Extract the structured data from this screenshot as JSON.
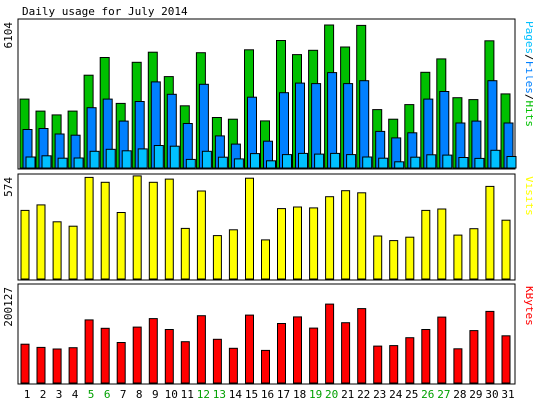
{
  "chart_data": {
    "type": "bar",
    "title": "Daily usage for July 2014",
    "x_ticks": [
      "1",
      "2",
      "3",
      "4",
      "5",
      "6",
      "7",
      "8",
      "9",
      "10",
      "11",
      "12",
      "13",
      "14",
      "15",
      "16",
      "17",
      "18",
      "19",
      "20",
      "21",
      "22",
      "23",
      "24",
      "25",
      "26",
      "27",
      "28",
      "29",
      "30",
      "31"
    ],
    "weekend_days": [
      "5",
      "6",
      "12",
      "13",
      "19",
      "20",
      "26",
      "27"
    ],
    "colors": {
      "hits": "#00c000",
      "files": "#0080ff",
      "pages": "#00c0ff",
      "visits": "#ffff00",
      "kbytes": "#ff0000",
      "weekday_tick": "#000000",
      "weekend_tick": "#00a000"
    },
    "panels": [
      {
        "id": "top",
        "max_label": "6104",
        "ymax": 6104,
        "legend": [
          "Pages",
          "/",
          "Files",
          "/",
          "Hits"
        ],
        "legend_colors": [
          "#00c0ff",
          "#000000",
          "#0080ff",
          "#000000",
          "#00c000"
        ],
        "series": [
          {
            "name": "Hits",
            "color": "#00c000",
            "values": [
              2880,
              2380,
              2220,
              2380,
              3880,
              4620,
              2700,
              4420,
              4840,
              3820,
              2600,
              4820,
              2110,
              2040,
              4940,
              1970,
              5330,
              4740,
              4920,
              5980,
              5060,
              5960,
              2440,
              2040,
              2650,
              4000,
              4560,
              2940,
              2860,
              5320,
              3100
            ]
          },
          {
            "name": "Files",
            "color": "#0080ff",
            "values": [
              1610,
              1650,
              1420,
              1370,
              2520,
              2880,
              1960,
              2780,
              3600,
              3080,
              1860,
              3500,
              1340,
              1000,
              2960,
              1120,
              3150,
              3550,
              3530,
              3990,
              3530,
              3650,
              1530,
              1260,
              1470,
              2880,
              3200,
              1880,
              1960,
              3650,
              1880
            ]
          },
          {
            "name": "Pages",
            "color": "#00c0ff",
            "values": [
              460,
              510,
              410,
              420,
              700,
              780,
              720,
              800,
              940,
              910,
              360,
              700,
              450,
              380,
              600,
              300,
              560,
              610,
              580,
              610,
              560,
              460,
              410,
              260,
              450,
              550,
              540,
              440,
              400,
              740,
              480
            ]
          }
        ]
      },
      {
        "id": "middle",
        "max_label": "574",
        "ymax": 574,
        "legend": [
          "Visits"
        ],
        "legend_colors": [
          "#ffff00"
        ],
        "series": [
          {
            "name": "Visits",
            "color": "#ffff00",
            "values": [
              386,
              417,
              322,
              297,
              572,
              544,
              374,
              580,
              544,
              562,
              285,
              495,
              244,
              277,
              567,
              220,
              396,
              405,
              400,
              463,
              497,
              485,
              242,
              216,
              235,
              386,
              394,
              247,
              283,
              521,
              331
            ]
          }
        ]
      },
      {
        "id": "bottom",
        "max_label": "200127",
        "ymax": 200127,
        "legend": [
          "KBytes"
        ],
        "legend_colors": [
          "#ff0000"
        ],
        "series": [
          {
            "name": "KBytes",
            "color": "#ff0000",
            "values": [
              80800,
              74200,
              70800,
              73600,
              131500,
              114000,
              84400,
              116600,
              134200,
              111600,
              86000,
              140400,
              91100,
              72300,
              141600,
              67900,
              124100,
              137800,
              114500,
              164500,
              125700,
              155100,
              77000,
              78000,
              94500,
              111600,
              137300,
              71200,
              109200,
              149300,
              98400
            ]
          }
        ]
      }
    ]
  }
}
